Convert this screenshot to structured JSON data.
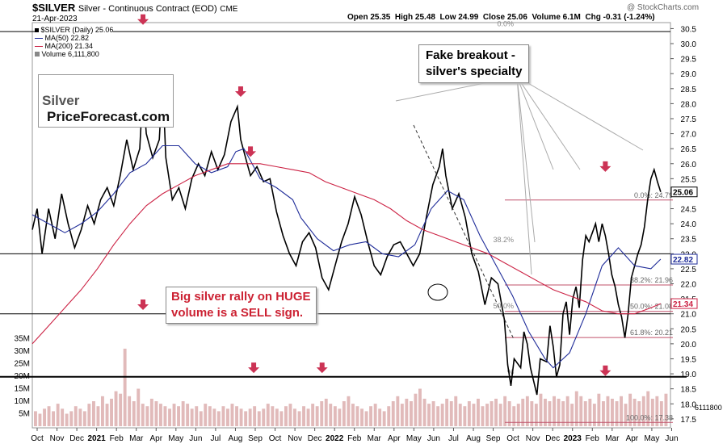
{
  "header": {
    "symbol": "$SILVER",
    "title": "Silver - Continuous Contract (EOD)",
    "exchange": "CME",
    "date": "21-Apr-2023",
    "copyright": "@ StockCharts.com",
    "quote": {
      "open": "Open 25.35",
      "high": "High 25.48",
      "low": "Low 24.99",
      "close": "Close 25.06",
      "volume": "Volume 6.1M",
      "chg": "Chg -0.31 (-1.24%)"
    }
  },
  "legend": [
    {
      "label": "$SILVER (Daily) 25.06",
      "color": "#000000"
    },
    {
      "label": "MA(50) 22.82",
      "color": "#1f2c99"
    },
    {
      "label": "MA(200) 21.34",
      "color": "#cc2244"
    },
    {
      "label": "Volume 6,111,800",
      "color": "#888888"
    }
  ],
  "branding": {
    "left": "Silver",
    "right": "PriceForecast.com"
  },
  "annotations": {
    "fake_breakout": "Fake breakout -\nsilver's specialty",
    "volume_note": "Big silver rally on HUGE\nvolume is a SELL sign."
  },
  "colors": {
    "price": "#000000",
    "ma50": "#1f2c99",
    "ma200": "#cc2244",
    "arrow": "#cc3355",
    "volume": "#d9a9a9",
    "fib": "#c0506a"
  },
  "chart_data": {
    "type": "line",
    "x_labels": [
      "Oct",
      "Nov",
      "Dec",
      "2021",
      "Feb",
      "Mar",
      "Apr",
      "May",
      "Jun",
      "Jul",
      "Aug",
      "Sep",
      "Oct",
      "Nov",
      "Dec",
      "2022",
      "Feb",
      "Mar",
      "Apr",
      "May",
      "Jun",
      "Jul",
      "Aug",
      "Sep",
      "Oct",
      "Nov",
      "Dec",
      "2023",
      "Feb",
      "Mar",
      "Apr",
      "May",
      "Jun"
    ],
    "y_ticks": [
      17.5,
      18.0,
      18.5,
      19.0,
      19.5,
      20.0,
      20.5,
      21.0,
      21.5,
      22.0,
      22.5,
      23.0,
      23.5,
      24.0,
      24.5,
      25.0,
      25.5,
      26.0,
      26.5,
      27.0,
      27.5,
      28.0,
      28.5,
      29.0,
      29.5,
      30.0,
      30.5
    ],
    "y_tick_labels": [
      "17.5",
      "18.0",
      "18.5",
      "19.0",
      "19.5",
      "20.0",
      "20.5",
      "21.0",
      "21.5",
      "22.0",
      "22.5",
      "23.0",
      "23.5",
      "24.0",
      "24.5",
      "25.0",
      "25.5",
      "26.0",
      "26.5",
      "27.0",
      "27.5",
      "28.0",
      "28.5",
      "29.0",
      "29.5",
      "30.0",
      "30.5"
    ],
    "ylim": [
      17.2,
      30.7
    ],
    "volume_ticks": [
      "5M",
      "10M",
      "15M",
      "20M",
      "25M",
      "30M",
      "35M"
    ],
    "volume_tick_values": [
      5,
      10,
      15,
      20,
      25,
      30,
      35
    ],
    "price_labels": {
      "last": "25.06",
      "ma50": "22.82",
      "ma200": "21.34",
      "volume": "6111800"
    },
    "series": [
      {
        "name": "$SILVER (Daily)",
        "points": [
          [
            0,
            23.8
          ],
          [
            3,
            24.5
          ],
          [
            6,
            23.0
          ],
          [
            10,
            24.5
          ],
          [
            14,
            23.5
          ],
          [
            18,
            25.0
          ],
          [
            22,
            24.0
          ],
          [
            26,
            23.2
          ],
          [
            30,
            23.8
          ],
          [
            34,
            24.6
          ],
          [
            38,
            24.0
          ],
          [
            42,
            24.8
          ],
          [
            46,
            25.2
          ],
          [
            50,
            24.6
          ],
          [
            54,
            25.6
          ],
          [
            58,
            26.8
          ],
          [
            62,
            25.8
          ],
          [
            66,
            26.5
          ],
          [
            68,
            28.5
          ],
          [
            70,
            27.0
          ],
          [
            74,
            26.2
          ],
          [
            78,
            26.8
          ],
          [
            80,
            28.8
          ],
          [
            82,
            26.2
          ],
          [
            86,
            24.8
          ],
          [
            90,
            25.2
          ],
          [
            94,
            24.5
          ],
          [
            98,
            25.5
          ],
          [
            102,
            26.0
          ],
          [
            106,
            25.6
          ],
          [
            110,
            26.4
          ],
          [
            114,
            25.8
          ],
          [
            118,
            26.3
          ],
          [
            122,
            27.4
          ],
          [
            126,
            27.9
          ],
          [
            128,
            26.8
          ],
          [
            132,
            26.0
          ],
          [
            134,
            25.6
          ],
          [
            138,
            25.9
          ],
          [
            142,
            25.4
          ],
          [
            146,
            25.5
          ],
          [
            150,
            24.4
          ],
          [
            154,
            23.6
          ],
          [
            158,
            23.0
          ],
          [
            162,
            22.6
          ],
          [
            166,
            23.4
          ],
          [
            170,
            23.7
          ],
          [
            174,
            23.2
          ],
          [
            178,
            22.2
          ],
          [
            182,
            21.8
          ],
          [
            186,
            22.6
          ],
          [
            190,
            23.4
          ],
          [
            194,
            24.0
          ],
          [
            198,
            24.9
          ],
          [
            202,
            24.3
          ],
          [
            206,
            23.4
          ],
          [
            210,
            22.6
          ],
          [
            214,
            22.3
          ],
          [
            218,
            22.9
          ],
          [
            222,
            23.3
          ],
          [
            226,
            23.4
          ],
          [
            230,
            23.0
          ],
          [
            234,
            22.6
          ],
          [
            238,
            23.0
          ],
          [
            242,
            24.2
          ],
          [
            246,
            25.3
          ],
          [
            250,
            25.9
          ],
          [
            252,
            26.5
          ],
          [
            254,
            25.6
          ],
          [
            258,
            24.5
          ],
          [
            262,
            25.0
          ],
          [
            266,
            24.2
          ],
          [
            270,
            23.0
          ],
          [
            274,
            22.4
          ],
          [
            278,
            21.3
          ],
          [
            282,
            22.2
          ],
          [
            286,
            22.0
          ],
          [
            290,
            20.8
          ],
          [
            292,
            19.3
          ],
          [
            294,
            18.6
          ],
          [
            296,
            19.5
          ],
          [
            300,
            19.2
          ],
          [
            302,
            20.4
          ],
          [
            304,
            20.0
          ],
          [
            306,
            19.2
          ],
          [
            310,
            18.3
          ],
          [
            312,
            19.5
          ],
          [
            316,
            19.4
          ],
          [
            318,
            20.6
          ],
          [
            320,
            19.9
          ],
          [
            322,
            18.9
          ],
          [
            324,
            19.3
          ],
          [
            326,
            21.0
          ],
          [
            328,
            21.4
          ],
          [
            330,
            20.3
          ],
          [
            332,
            21.5
          ],
          [
            334,
            21.9
          ],
          [
            336,
            21.2
          ],
          [
            338,
            22.8
          ],
          [
            340,
            23.6
          ],
          [
            342,
            23.4
          ],
          [
            344,
            23.7
          ],
          [
            346,
            24.0
          ],
          [
            348,
            23.4
          ],
          [
            350,
            24.0
          ],
          [
            352,
            23.6
          ],
          [
            354,
            23.0
          ],
          [
            356,
            22.3
          ],
          [
            358,
            21.9
          ],
          [
            360,
            21.3
          ],
          [
            362,
            20.9
          ],
          [
            364,
            20.2
          ],
          [
            366,
            21.0
          ],
          [
            368,
            22.2
          ],
          [
            370,
            22.6
          ],
          [
            372,
            23.0
          ],
          [
            374,
            23.3
          ],
          [
            376,
            23.9
          ],
          [
            378,
            24.8
          ],
          [
            380,
            25.5
          ],
          [
            382,
            25.8
          ],
          [
            384,
            25.4
          ],
          [
            386,
            25.06
          ]
        ]
      },
      {
        "name": "MA(50)",
        "points": [
          [
            0,
            24.3
          ],
          [
            10,
            24.0
          ],
          [
            20,
            23.7
          ],
          [
            30,
            24.0
          ],
          [
            40,
            24.4
          ],
          [
            50,
            25.0
          ],
          [
            60,
            25.7
          ],
          [
            70,
            26.0
          ],
          [
            80,
            26.6
          ],
          [
            90,
            26.6
          ],
          [
            100,
            26.0
          ],
          [
            110,
            25.7
          ],
          [
            120,
            25.9
          ],
          [
            125,
            26.4
          ],
          [
            130,
            26.5
          ],
          [
            135,
            26.0
          ],
          [
            140,
            25.5
          ],
          [
            150,
            25.2
          ],
          [
            160,
            24.8
          ],
          [
            165,
            24.2
          ],
          [
            175,
            23.5
          ],
          [
            185,
            23.1
          ],
          [
            195,
            23.3
          ],
          [
            205,
            23.4
          ],
          [
            215,
            23.0
          ],
          [
            225,
            22.9
          ],
          [
            235,
            23.3
          ],
          [
            245,
            24.5
          ],
          [
            255,
            25.1
          ],
          [
            265,
            24.8
          ],
          [
            275,
            23.6
          ],
          [
            285,
            22.6
          ],
          [
            295,
            21.6
          ],
          [
            305,
            20.4
          ],
          [
            315,
            19.5
          ],
          [
            320,
            19.2
          ],
          [
            330,
            19.7
          ],
          [
            340,
            21.0
          ],
          [
            350,
            22.6
          ],
          [
            360,
            23.2
          ],
          [
            370,
            22.6
          ],
          [
            380,
            22.5
          ],
          [
            386,
            22.82
          ]
        ]
      },
      {
        "name": "MA(200)",
        "points": [
          [
            0,
            20.0
          ],
          [
            10,
            20.6
          ],
          [
            20,
            21.2
          ],
          [
            30,
            21.8
          ],
          [
            40,
            22.5
          ],
          [
            50,
            23.3
          ],
          [
            60,
            24.0
          ],
          [
            70,
            24.6
          ],
          [
            80,
            25.0
          ],
          [
            90,
            25.3
          ],
          [
            100,
            25.6
          ],
          [
            110,
            25.8
          ],
          [
            120,
            26.0
          ],
          [
            130,
            26.0
          ],
          [
            140,
            26.0
          ],
          [
            150,
            25.9
          ],
          [
            160,
            25.8
          ],
          [
            170,
            25.7
          ],
          [
            180,
            25.4
          ],
          [
            190,
            25.2
          ],
          [
            200,
            25.0
          ],
          [
            210,
            24.8
          ],
          [
            220,
            24.5
          ],
          [
            230,
            24.1
          ],
          [
            240,
            23.8
          ],
          [
            250,
            23.6
          ],
          [
            260,
            23.4
          ],
          [
            270,
            23.2
          ],
          [
            280,
            23.0
          ],
          [
            290,
            22.7
          ],
          [
            300,
            22.4
          ],
          [
            310,
            22.1
          ],
          [
            320,
            21.8
          ],
          [
            330,
            21.6
          ],
          [
            340,
            21.4
          ],
          [
            350,
            21.1
          ],
          [
            360,
            21.0
          ],
          [
            370,
            21.0
          ],
          [
            380,
            21.2
          ],
          [
            386,
            21.34
          ]
        ]
      }
    ],
    "volume_values": [
      6,
      5,
      7,
      8,
      6,
      9,
      7,
      5,
      6,
      8,
      7,
      6,
      9,
      10,
      8,
      12,
      9,
      11,
      14,
      13,
      31,
      12,
      10,
      15,
      9,
      8,
      11,
      10,
      9,
      8,
      7,
      9,
      8,
      10,
      9,
      7,
      8,
      6,
      9,
      8,
      7,
      6,
      8,
      7,
      9,
      8,
      7,
      6,
      7,
      8,
      6,
      7,
      9,
      8,
      7,
      6,
      8,
      9,
      7,
      6,
      8,
      7,
      9,
      8,
      10,
      11,
      9,
      8,
      7,
      10,
      12,
      9,
      8,
      7,
      6,
      8,
      9,
      7,
      6,
      8,
      10,
      12,
      9,
      11,
      10,
      13,
      15,
      11,
      9,
      10,
      8,
      9,
      11,
      10,
      12,
      9,
      8,
      10,
      9,
      11,
      8,
      9,
      10,
      11,
      9,
      12,
      10,
      8,
      9,
      11,
      12,
      10,
      9,
      13,
      11,
      10,
      12,
      11,
      10,
      12,
      9,
      14,
      12,
      10,
      11,
      9,
      13,
      10,
      12,
      11,
      10,
      12,
      9,
      13,
      11,
      10,
      12,
      14,
      11,
      12,
      10,
      13
    ],
    "fibonacci": [
      {
        "label": "0.0%: 24.79",
        "value": 24.79
      },
      {
        "label": "38.2%: 21.96",
        "value": 21.96
      },
      {
        "label": "50.0%: 21.08",
        "value": 21.08
      },
      {
        "label": "61.8%: 20.21",
        "value": 20.21
      },
      {
        "label": "100.0%: 17.38",
        "value": 17.38
      }
    ],
    "fib_old": [
      {
        "label": "0.0%",
        "value": 30.5
      },
      {
        "label": "38.2%",
        "value": 23.3
      },
      {
        "label": "50.0%",
        "value": 21.1
      },
      {
        "label": "%",
        "value": 18.9
      }
    ],
    "horizontal_lines": [
      30.4,
      23.0,
      21.0,
      18.9
    ],
    "arrow_values": [
      {
        "x": 68,
        "y": 30.6
      },
      {
        "x": 128,
        "y": 28.2
      },
      {
        "x": 134,
        "y": 26.2
      },
      {
        "x": 68,
        "y": 21.1
      },
      {
        "x": 136,
        "y": 19.0
      },
      {
        "x": 178,
        "y": 19.0
      },
      {
        "x": 352,
        "y": 25.7
      },
      {
        "x": 352,
        "y": 18.9
      }
    ]
  }
}
